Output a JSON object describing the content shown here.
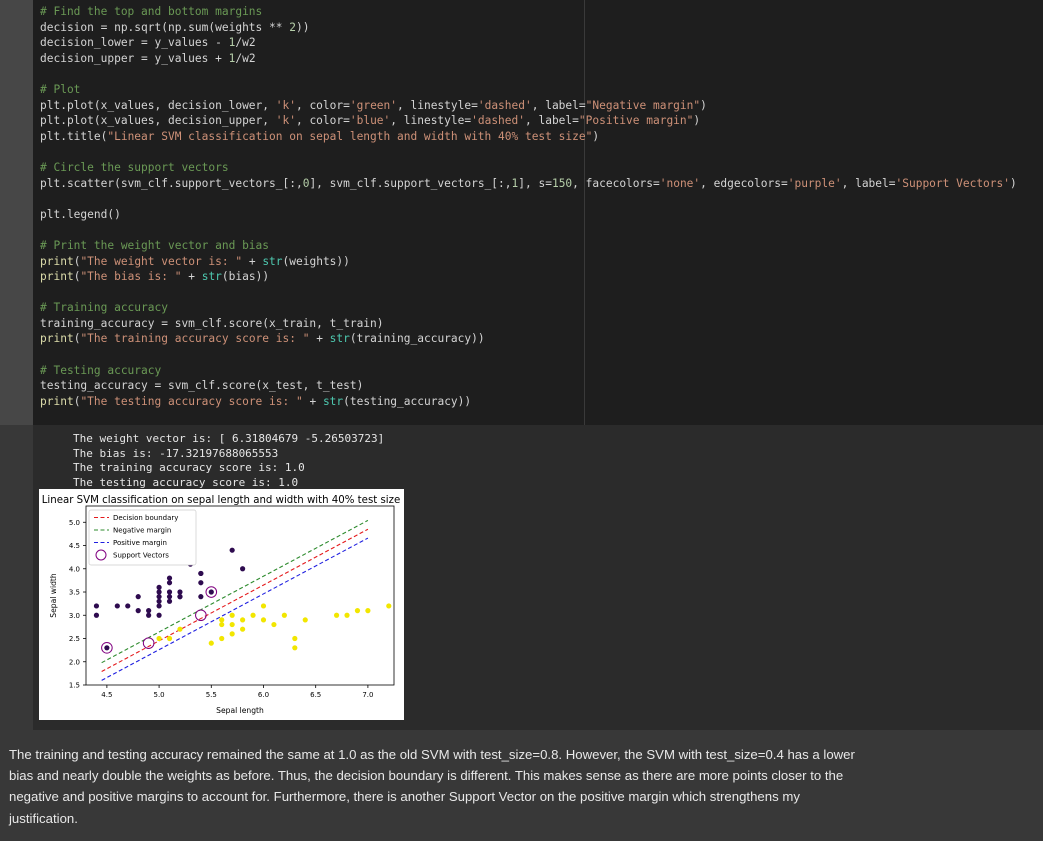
{
  "code_lines": [
    [
      {
        "t": "# Find the top and bottom margins",
        "c": "c-com"
      }
    ],
    [
      {
        "t": "decision = np.sqrt(np.sum(weights ** "
      },
      {
        "t": "2",
        "c": "c-num"
      },
      {
        "t": "))"
      }
    ],
    [
      {
        "t": "decision_lower = y_values - "
      },
      {
        "t": "1",
        "c": "c-num"
      },
      {
        "t": "/w2"
      }
    ],
    [
      {
        "t": "decision_upper = y_values + "
      },
      {
        "t": "1",
        "c": "c-num"
      },
      {
        "t": "/w2"
      }
    ],
    [
      {
        "t": ""
      }
    ],
    [
      {
        "t": "# Plot",
        "c": "c-com"
      }
    ],
    [
      {
        "t": "plt.plot(x_values, decision_lower, "
      },
      {
        "t": "'k'",
        "c": "c-str"
      },
      {
        "t": ", color="
      },
      {
        "t": "'green'",
        "c": "c-str"
      },
      {
        "t": ", linestyle="
      },
      {
        "t": "'dashed'",
        "c": "c-str"
      },
      {
        "t": ", label="
      },
      {
        "t": "\"Negative margin\"",
        "c": "c-str"
      },
      {
        "t": ")"
      }
    ],
    [
      {
        "t": "plt.plot(x_values, decision_upper, "
      },
      {
        "t": "'k'",
        "c": "c-str"
      },
      {
        "t": ", color="
      },
      {
        "t": "'blue'",
        "c": "c-str"
      },
      {
        "t": ", linestyle="
      },
      {
        "t": "'dashed'",
        "c": "c-str"
      },
      {
        "t": ", label="
      },
      {
        "t": "\"Positive margin\"",
        "c": "c-str"
      },
      {
        "t": ")"
      }
    ],
    [
      {
        "t": "plt.title("
      },
      {
        "t": "\"Linear SVM classification on sepal length and width with 40% test size\"",
        "c": "c-str"
      },
      {
        "t": ")"
      }
    ],
    [
      {
        "t": ""
      }
    ],
    [
      {
        "t": "# Circle the support vectors",
        "c": "c-com"
      }
    ],
    [
      {
        "t": "plt.scatter(svm_clf.support_vectors_[:,"
      },
      {
        "t": "0",
        "c": "c-num"
      },
      {
        "t": "], svm_clf.support_vectors_[:,"
      },
      {
        "t": "1",
        "c": "c-num"
      },
      {
        "t": "], s="
      },
      {
        "t": "150",
        "c": "c-num"
      },
      {
        "t": ", facecolors="
      },
      {
        "t": "'none'",
        "c": "c-str"
      },
      {
        "t": ", edgecolors="
      },
      {
        "t": "'purple'",
        "c": "c-str"
      },
      {
        "t": ", label="
      },
      {
        "t": "'Support Vectors'",
        "c": "c-str"
      },
      {
        "t": ")"
      }
    ],
    [
      {
        "t": ""
      }
    ],
    [
      {
        "t": "plt.legend()"
      }
    ],
    [
      {
        "t": ""
      }
    ],
    [
      {
        "t": "# Print the weight vector and bias",
        "c": "c-com"
      }
    ],
    [
      {
        "t": "print",
        "c": "c-fn"
      },
      {
        "t": "("
      },
      {
        "t": "\"The weight vector is: \"",
        "c": "c-str"
      },
      {
        "t": " + "
      },
      {
        "t": "str",
        "c": "c-bi"
      },
      {
        "t": "(weights))"
      }
    ],
    [
      {
        "t": "print",
        "c": "c-fn"
      },
      {
        "t": "("
      },
      {
        "t": "\"The bias is: \"",
        "c": "c-str"
      },
      {
        "t": " + "
      },
      {
        "t": "str",
        "c": "c-bi"
      },
      {
        "t": "(bias))"
      }
    ],
    [
      {
        "t": ""
      }
    ],
    [
      {
        "t": "# Training accuracy",
        "c": "c-com"
      }
    ],
    [
      {
        "t": "training_accuracy = svm_clf.score(x_train, t_train)"
      }
    ],
    [
      {
        "t": "print",
        "c": "c-fn"
      },
      {
        "t": "("
      },
      {
        "t": "\"The training accuracy score is: \"",
        "c": "c-str"
      },
      {
        "t": " + "
      },
      {
        "t": "str",
        "c": "c-bi"
      },
      {
        "t": "(training_accuracy))"
      }
    ],
    [
      {
        "t": ""
      }
    ],
    [
      {
        "t": "# Testing accuracy",
        "c": "c-com"
      }
    ],
    [
      {
        "t": "testing_accuracy = svm_clf.score(x_test, t_test)"
      }
    ],
    [
      {
        "t": "print",
        "c": "c-fn"
      },
      {
        "t": "("
      },
      {
        "t": "\"The testing accuracy score is: \"",
        "c": "c-str"
      },
      {
        "t": " + "
      },
      {
        "t": "str",
        "c": "c-bi"
      },
      {
        "t": "(testing_accuracy))"
      }
    ]
  ],
  "output_lines": [
    "The weight vector is: [ 6.31804679 -5.26503723]",
    "The bias is: -17.32197688065553",
    "The training accuracy score is: 1.0",
    "The testing accuracy score is: 1.0"
  ],
  "chart_data": {
    "type": "scatter",
    "title": "Linear SVM classification on sepal length and width with 40% test size",
    "xlabel": "Sepal length",
    "ylabel": "Sepal width",
    "xlim": [
      4.3,
      7.25
    ],
    "ylim": [
      1.5,
      5.35
    ],
    "xticks": [
      "4.5",
      "5.0",
      "5.5",
      "6.0",
      "6.5",
      "7.0"
    ],
    "yticks": [
      "1.5",
      "2.0",
      "2.5",
      "3.0",
      "3.5",
      "4.0",
      "4.5",
      "5.0"
    ],
    "legend_position": "top-left",
    "grid": false,
    "series": [
      {
        "name": "Decision boundary",
        "kind": "line",
        "color": "#e41a1c",
        "dash": true,
        "x": [
          4.45,
          7.0
        ],
        "y": [
          1.79,
          4.85
        ]
      },
      {
        "name": "Negative margin",
        "kind": "line",
        "color": "#2e8b2e",
        "dash": true,
        "x": [
          4.45,
          7.0
        ],
        "y": [
          1.98,
          5.04
        ]
      },
      {
        "name": "Positive margin",
        "kind": "line",
        "color": "#1f1fe0",
        "dash": true,
        "x": [
          4.45,
          7.0
        ],
        "y": [
          1.6,
          4.66
        ]
      },
      {
        "name": "Support Vectors",
        "kind": "ring",
        "color": "#800080",
        "x": [
          4.5,
          4.9,
          5.5,
          5.4
        ],
        "y": [
          2.3,
          2.4,
          3.5,
          3.0
        ]
      },
      {
        "kind": "points",
        "color": "#2e0b4f",
        "x": [
          4.4,
          4.4,
          4.6,
          4.7,
          4.8,
          4.9,
          5.0,
          5.0,
          5.0,
          5.0,
          5.1,
          5.1,
          5.1,
          5.1,
          5.1,
          5.2,
          5.2,
          5.3,
          5.4,
          5.4,
          5.4,
          5.4,
          5.5,
          5.7,
          5.8,
          4.5,
          4.9,
          4.8,
          5.0,
          5.2,
          5.0
        ],
        "y": [
          3.0,
          3.2,
          3.2,
          3.2,
          3.1,
          3.0,
          3.0,
          3.2,
          3.4,
          3.5,
          3.5,
          3.7,
          3.8,
          3.3,
          3.4,
          3.4,
          3.5,
          4.1,
          3.9,
          3.7,
          3.4,
          3.9,
          3.5,
          4.4,
          4.0,
          2.3,
          3.1,
          3.4,
          3.6,
          3.4,
          3.3
        ]
      },
      {
        "kind": "points",
        "color": "#f2e600",
        "x": [
          5.0,
          5.1,
          5.2,
          5.6,
          5.6,
          5.7,
          5.7,
          5.8,
          5.8,
          5.9,
          6.0,
          6.0,
          6.1,
          6.2,
          6.3,
          6.3,
          6.7,
          6.8,
          6.9,
          7.0,
          7.2,
          5.5,
          5.6,
          6.4,
          5.7
        ],
        "y": [
          2.5,
          2.5,
          2.7,
          2.5,
          2.8,
          2.6,
          3.0,
          2.7,
          2.9,
          3.0,
          2.9,
          3.2,
          2.8,
          3.0,
          2.5,
          2.3,
          3.0,
          3.0,
          3.1,
          3.1,
          3.2,
          2.4,
          2.9,
          2.9,
          2.8
        ]
      }
    ]
  },
  "markdown_text": "The training and testing accuracy remained the same at 1.0 as the old SVM with test_size=0.8. However, the SVM with test_size=0.4 has a lower bias and nearly double the weights as before. Thus, the decision boundary is different. This makes sense as there are more points closer to the negative and positive margins to account for. Furthermore, there is another Support Vector on the positive margin which strengthens my justification."
}
